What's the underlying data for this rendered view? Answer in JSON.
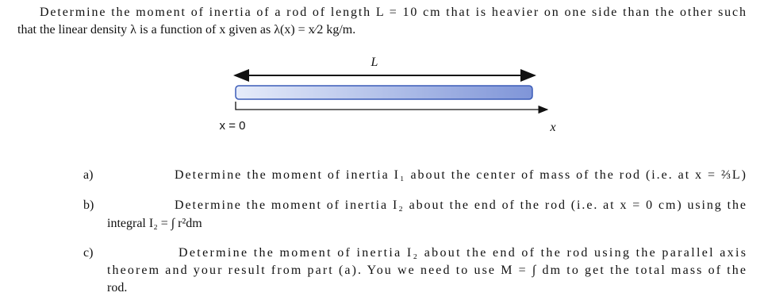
{
  "problem": {
    "intro": [
      "Determine the moment of inertia of a rod of length L = 10 cm that is heavier on one side than the other such",
      "that the linear density λ is a function of x given as λ(x) = x⁄2 kg/m."
    ]
  },
  "diagram": {
    "length_label": "L",
    "origin_label": "x = 0",
    "axis_label": "x"
  },
  "parts": [
    {
      "label": "a)",
      "lines": [
        "Determine the moment of inertia I₁ about the center of mass of the rod (i.e. at x = ⅔L)"
      ]
    },
    {
      "label": "b)",
      "lines": [
        "Determine the moment of inertia I₂ about the end of the rod (i.e. at x = 0 cm) using the",
        "integral I₂ = ∫ r²dm"
      ]
    },
    {
      "label": "c)",
      "lines": [
        "Determine the moment of inertia I₂ about the end of the rod using the parallel axis",
        "theorem and your result from part (a). You we need to use M = ∫ dm to get the total mass of the",
        "rod."
      ]
    }
  ]
}
